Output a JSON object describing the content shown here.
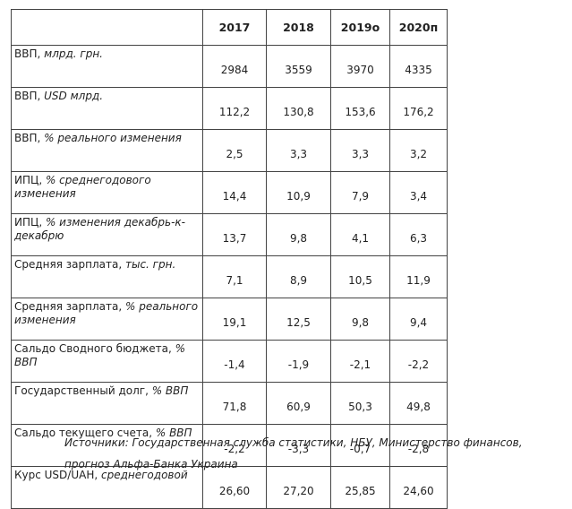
{
  "table": {
    "columns": [
      "2017",
      "2018",
      "2019о",
      "2020п"
    ],
    "rows": [
      {
        "label": "ВВП,",
        "unit": "млрд. грн.",
        "values": [
          "2984",
          "3559",
          "3970",
          "4335"
        ]
      },
      {
        "label": "ВВП,",
        "unit": "USD млрд.",
        "values": [
          "112,2",
          "130,8",
          "153,6",
          "176,2"
        ]
      },
      {
        "label": "ВВП,",
        "unit": "% реального изменения",
        "values": [
          "2,5",
          "3,3",
          "3,3",
          "3,2"
        ]
      },
      {
        "label": "ИПЦ,",
        "unit": "% среднегодового изменения",
        "values": [
          "14,4",
          "10,9",
          "7,9",
          "3,4"
        ]
      },
      {
        "label": "ИПЦ,",
        "unit": "% изменения декабрь-к-декабрю",
        "values": [
          "13,7",
          "9,8",
          "4,1",
          "6,3"
        ]
      },
      {
        "label": "Средняя зарплата,",
        "unit": "тыс. грн.",
        "values": [
          "7,1",
          "8,9",
          "10,5",
          "11,9"
        ]
      },
      {
        "label": "Средняя зарплата,",
        "unit": "% реального изменения",
        "values": [
          "19,1",
          "12,5",
          "9,8",
          "9,4"
        ]
      },
      {
        "label": "Сальдо Сводного бюджета,",
        "unit": "% ВВП",
        "values": [
          "-1,4",
          "-1,9",
          "-2,1",
          "-2,2"
        ]
      },
      {
        "label": "Государственный долг,",
        "unit": "% ВВП",
        "values": [
          "71,8",
          "60,9",
          "50,3",
          "49,8"
        ]
      },
      {
        "label": "Сальдо текущего счета,",
        "unit": "% ВВП",
        "values": [
          "-2,2",
          "-3,3",
          "-0,7",
          "-2,8"
        ]
      },
      {
        "label": "Курс USD/UAH,",
        "unit": "среднегодовой",
        "values": [
          "26,60",
          "27,20",
          "25,85",
          "24,60"
        ]
      }
    ]
  },
  "note": "Источники: Государственная служба статистики, НБУ, Министерство финансов, прогноз Альфа-Банка Украина"
}
